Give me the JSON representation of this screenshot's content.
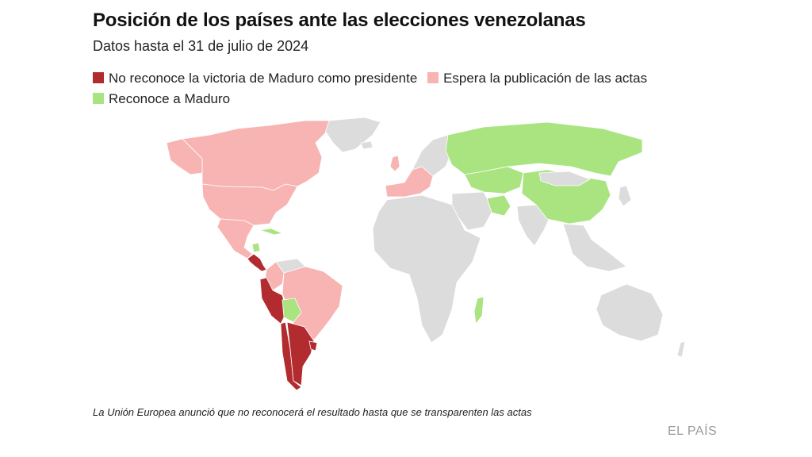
{
  "header": {
    "title": "Posición de los países ante las elecciones venezolanas",
    "subtitle": "Datos hasta el 31 de julio de 2024"
  },
  "legend": [
    {
      "label": "No reconoce la victoria de Maduro como presidente",
      "color": "#b22b2f"
    },
    {
      "label": "Espera la publicación de las actas",
      "color": "#f7b4b2"
    },
    {
      "label": "Reconoce a Maduro",
      "color": "#a9e481"
    }
  ],
  "colors": {
    "no_data": "#dcdcdc",
    "borders": "#ffffff"
  },
  "footer": {
    "note": "La Unión Europea anunció que no reconocerá el resultado hasta que se transparenten las actas",
    "brand": "EL PAÍS"
  }
}
